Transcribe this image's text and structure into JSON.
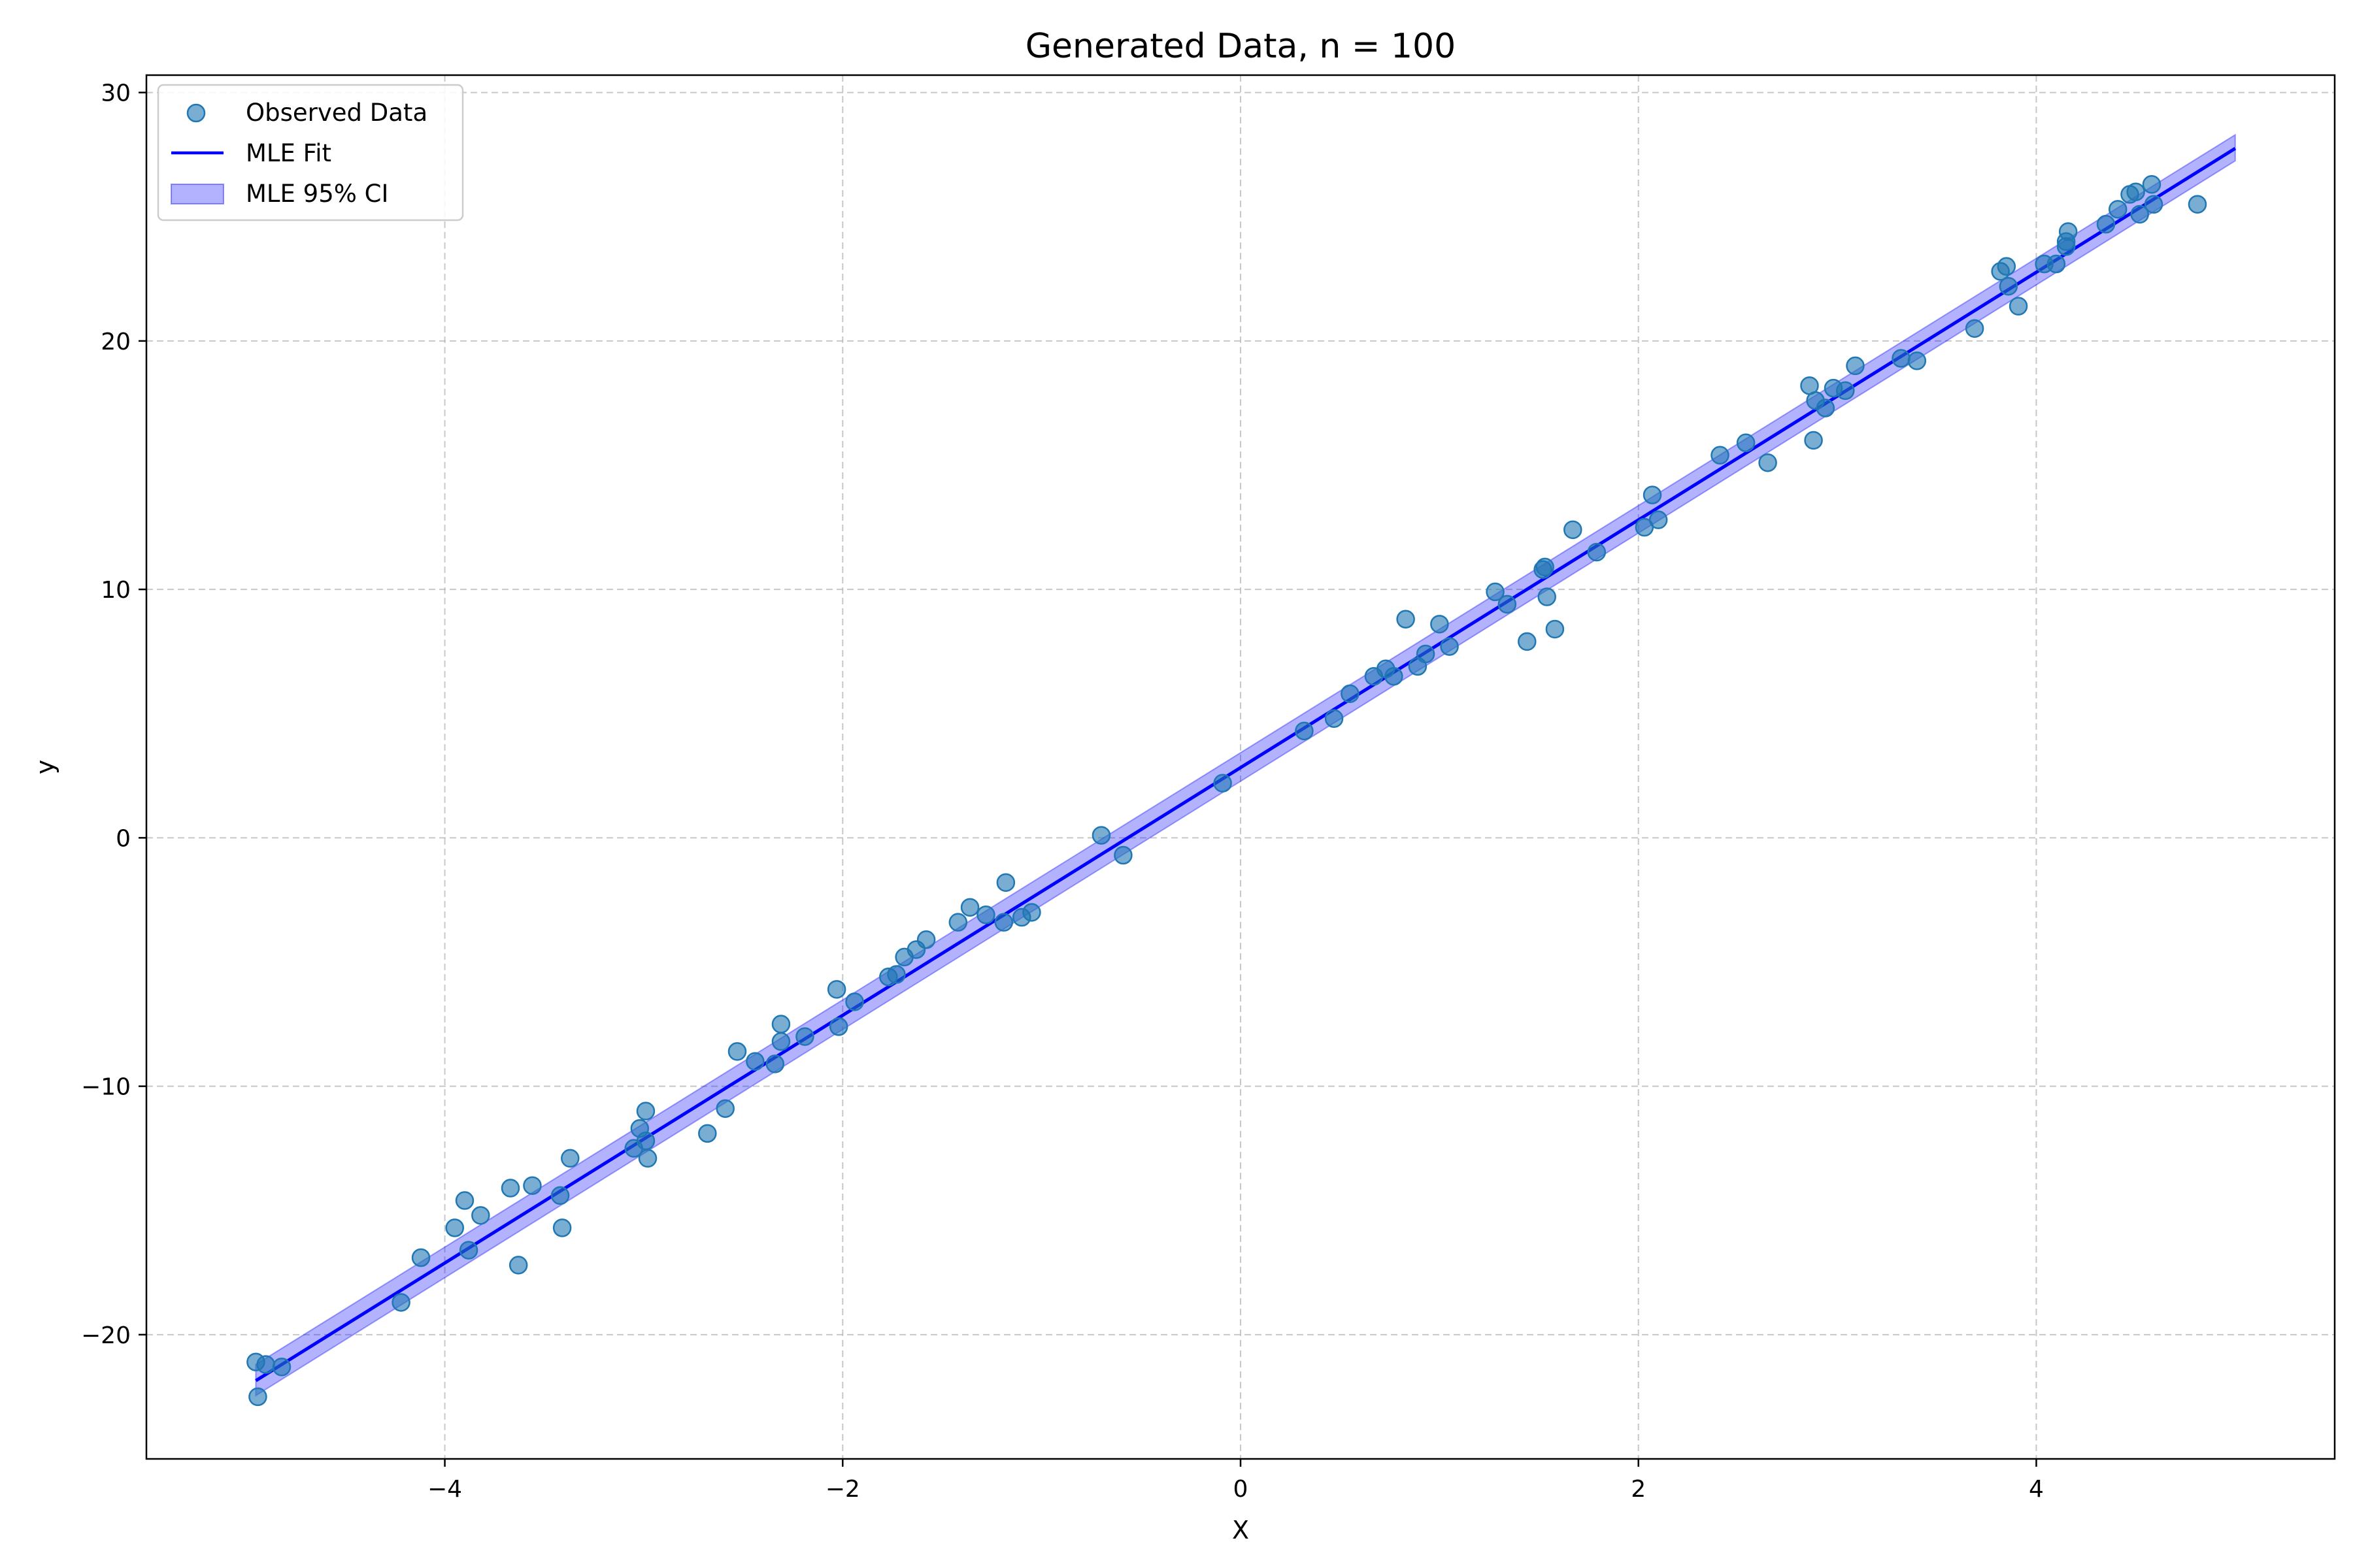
{
  "chart_data": {
    "type": "scatter",
    "title": "Generated Data, n = 100",
    "xlabel": "X",
    "ylabel": "y",
    "xlim": [
      -5.5,
      5.5
    ],
    "ylim": [
      -25,
      30.7
    ],
    "xticks": [
      -4,
      -2,
      0,
      2,
      4
    ],
    "xtick_labels": [
      "−4",
      "−2",
      "0",
      "2",
      "4"
    ],
    "yticks": [
      -20,
      -10,
      0,
      10,
      20,
      30
    ],
    "ytick_labels": [
      "−20",
      "−10",
      "0",
      "10",
      "20",
      "30"
    ],
    "grid": true,
    "legend_position": "top-left",
    "series": [
      {
        "name": "Observed Data",
        "kind": "scatter",
        "color": "#1f77b4",
        "points": [
          [
            -4.95,
            -21.1
          ],
          [
            -4.94,
            -22.5
          ],
          [
            -4.9,
            -21.2
          ],
          [
            -4.82,
            -21.3
          ],
          [
            -4.22,
            -18.7
          ],
          [
            -4.12,
            -16.9
          ],
          [
            -3.95,
            -15.7
          ],
          [
            -3.9,
            -14.6
          ],
          [
            -3.88,
            -16.6
          ],
          [
            -3.82,
            -15.2
          ],
          [
            -3.67,
            -14.1
          ],
          [
            -3.63,
            -17.2
          ],
          [
            -3.56,
            -14.0
          ],
          [
            -3.42,
            -14.4
          ],
          [
            -3.41,
            -15.7
          ],
          [
            -3.37,
            -12.9
          ],
          [
            -3.05,
            -12.5
          ],
          [
            -3.02,
            -11.7
          ],
          [
            -2.99,
            -11.0
          ],
          [
            -2.99,
            -12.2
          ],
          [
            -2.98,
            -12.9
          ],
          [
            -2.68,
            -11.9
          ],
          [
            -2.59,
            -10.9
          ],
          [
            -2.53,
            -8.6
          ],
          [
            -2.44,
            -9.0
          ],
          [
            -2.34,
            -9.1
          ],
          [
            -2.31,
            -7.5
          ],
          [
            -2.31,
            -8.2
          ],
          [
            -2.19,
            -8.0
          ],
          [
            -2.03,
            -6.1
          ],
          [
            -2.02,
            -7.6
          ],
          [
            -1.94,
            -6.6
          ],
          [
            -1.77,
            -5.6
          ],
          [
            -1.73,
            -5.5
          ],
          [
            -1.69,
            -4.8
          ],
          [
            -1.63,
            -4.5
          ],
          [
            -1.58,
            -4.1
          ],
          [
            -1.42,
            -3.4
          ],
          [
            -1.36,
            -2.8
          ],
          [
            -1.28,
            -3.1
          ],
          [
            -1.19,
            -3.4
          ],
          [
            -1.18,
            -1.8
          ],
          [
            -1.1,
            -3.2
          ],
          [
            -1.05,
            -3.0
          ],
          [
            -0.7,
            0.1
          ],
          [
            -0.59,
            -0.7
          ],
          [
            -0.09,
            2.2
          ],
          [
            0.32,
            4.3
          ],
          [
            0.47,
            4.8
          ],
          [
            0.55,
            5.8
          ],
          [
            0.67,
            6.5
          ],
          [
            0.73,
            6.8
          ],
          [
            0.77,
            6.5
          ],
          [
            0.83,
            8.8
          ],
          [
            0.89,
            6.9
          ],
          [
            0.93,
            7.4
          ],
          [
            1.0,
            8.6
          ],
          [
            1.05,
            7.7
          ],
          [
            1.28,
            9.9
          ],
          [
            1.34,
            9.4
          ],
          [
            1.44,
            7.9
          ],
          [
            1.52,
            10.8
          ],
          [
            1.53,
            10.9
          ],
          [
            1.54,
            9.7
          ],
          [
            1.58,
            8.4
          ],
          [
            1.67,
            12.4
          ],
          [
            1.79,
            11.5
          ],
          [
            2.03,
            12.5
          ],
          [
            2.07,
            13.8
          ],
          [
            2.1,
            12.8
          ],
          [
            2.41,
            15.4
          ],
          [
            2.54,
            15.9
          ],
          [
            2.65,
            15.1
          ],
          [
            2.86,
            18.2
          ],
          [
            2.88,
            16.0
          ],
          [
            2.89,
            17.6
          ],
          [
            2.94,
            17.3
          ],
          [
            2.98,
            18.1
          ],
          [
            3.04,
            18.0
          ],
          [
            3.09,
            19.0
          ],
          [
            3.32,
            19.3
          ],
          [
            3.4,
            19.2
          ],
          [
            3.69,
            20.5
          ],
          [
            3.82,
            22.8
          ],
          [
            3.85,
            23.0
          ],
          [
            3.86,
            22.2
          ],
          [
            3.91,
            21.4
          ],
          [
            4.04,
            23.1
          ],
          [
            4.1,
            23.1
          ],
          [
            4.15,
            23.8
          ],
          [
            4.15,
            24.0
          ],
          [
            4.16,
            24.4
          ],
          [
            4.35,
            24.7
          ],
          [
            4.41,
            25.3
          ],
          [
            4.47,
            25.9
          ],
          [
            4.5,
            26.0
          ],
          [
            4.52,
            25.1
          ],
          [
            4.58,
            26.3
          ],
          [
            4.59,
            25.5
          ],
          [
            4.81,
            25.5
          ]
        ]
      },
      {
        "name": "MLE Fit",
        "kind": "line",
        "color": "#0000ff",
        "x": [
          -4.95,
          5.0
        ],
        "y": [
          -21.85,
          27.75
        ]
      },
      {
        "name": "MLE 95% CI",
        "kind": "band",
        "color": "#0000ff",
        "x": [
          -4.95,
          5.0
        ],
        "lower": [
          -22.45,
          27.25
        ],
        "upper": [
          -21.2,
          28.3
        ]
      }
    ]
  }
}
